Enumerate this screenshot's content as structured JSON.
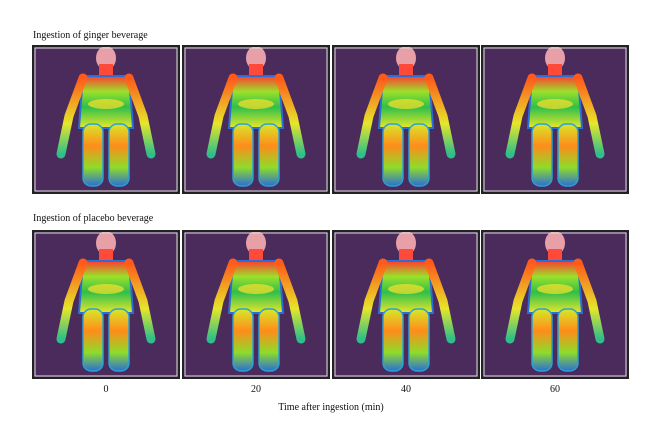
{
  "rows": [
    {
      "title": "Ingestion of ginger beverage"
    },
    {
      "title": "Ingestion of placebo beverage"
    }
  ],
  "time_labels": [
    "0",
    "20",
    "40",
    "60"
  ],
  "axis_label": "Time after ingestion (min)"
}
